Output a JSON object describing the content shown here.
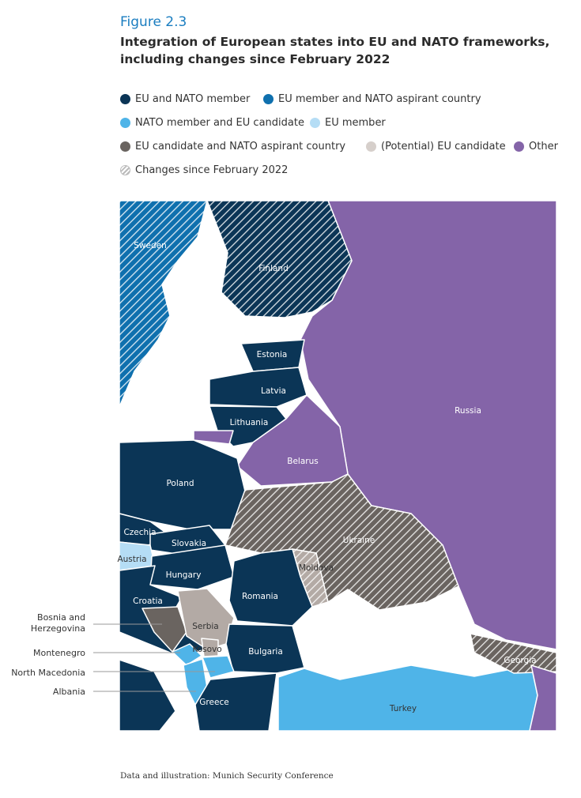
{
  "figure_label": "Figure 2.3",
  "title": "Integration of European states into EU and NATO frameworks, including changes since February 2022",
  "legend": [
    {
      "label": "EU and NATO member",
      "color": "#0b3556"
    },
    {
      "label": "EU member and NATO aspirant country",
      "color": "#0f70ae"
    },
    {
      "label": "NATO member and EU candidate",
      "color": "#4fb4e8"
    },
    {
      "label": "EU member",
      "color": "#b5ddf5"
    },
    {
      "label": "EU candidate and NATO aspirant country",
      "color": "#6a6460"
    },
    {
      "label": "(Potential) EU candidate",
      "color": "#d6cfcb"
    },
    {
      "label": "Other",
      "color": "#8464a8"
    },
    {
      "label": "Changes since February 2022",
      "icon": "hatch-icon"
    }
  ],
  "countries": {
    "sweden": {
      "name": "Sweden",
      "category": "EU member and NATO aspirant country",
      "changed": true
    },
    "finland": {
      "name": "Finland",
      "category": "EU and NATO member",
      "changed": true
    },
    "russia": {
      "name": "Russia",
      "category": "Other"
    },
    "estonia": {
      "name": "Estonia",
      "category": "EU and NATO member"
    },
    "latvia": {
      "name": "Latvia",
      "category": "EU and NATO member"
    },
    "lithuania": {
      "name": "Lithuania",
      "category": "EU and NATO member"
    },
    "belarus": {
      "name": "Belarus",
      "category": "Other"
    },
    "poland": {
      "name": "Poland",
      "category": "EU and NATO member"
    },
    "czechia": {
      "name": "Czechia",
      "category": "EU and NATO member"
    },
    "slovakia": {
      "name": "Slovakia",
      "category": "EU and NATO member"
    },
    "austria": {
      "name": "Austria",
      "category": "EU member"
    },
    "hungary": {
      "name": "Hungary",
      "category": "EU and NATO member"
    },
    "ukraine": {
      "name": "Ukraine",
      "category": "EU candidate and NATO aspirant country",
      "changed": true
    },
    "moldova": {
      "name": "Moldova",
      "category": "(Potential) EU candidate",
      "changed": true
    },
    "romania": {
      "name": "Romania",
      "category": "EU and NATO member"
    },
    "croatia": {
      "name": "Croatia",
      "category": "EU and NATO member"
    },
    "bosnia": {
      "name": "Bosnia and Herzegovina",
      "line1": "Bosnia and",
      "line2": "Herzegovina",
      "category": "EU candidate and NATO aspirant country"
    },
    "serbia": {
      "name": "Serbia",
      "category": "(Potential) EU candidate"
    },
    "kosovo": {
      "name": "Kosovo",
      "category": "(Potential) EU candidate"
    },
    "montenegro": {
      "name": "Montenegro",
      "category": "NATO member and EU candidate"
    },
    "north_macedonia": {
      "name": "North Macedonia",
      "category": "NATO member and EU candidate"
    },
    "albania": {
      "name": "Albania",
      "category": "NATO member and EU candidate"
    },
    "bulgaria": {
      "name": "Bulgaria",
      "category": "EU and NATO member"
    },
    "greece": {
      "name": "Greece",
      "category": "EU and NATO member"
    },
    "turkey": {
      "name": "Turkey",
      "category": "NATO member and EU candidate"
    },
    "georgia": {
      "name": "Georgia",
      "category": "EU candidate and NATO aspirant country",
      "changed": true
    }
  },
  "source": "Data and illustration: Munich Security Conference"
}
